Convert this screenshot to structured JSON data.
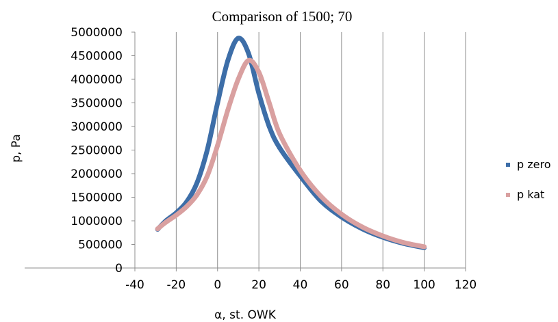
{
  "chart_data": {
    "type": "scatter",
    "title": "Comparison of 1500; 70",
    "xlabel": "α, st. OWK",
    "ylabel": "p, Pa",
    "xlim": [
      -40,
      120
    ],
    "ylim": [
      0,
      5000000
    ],
    "x_ticks": [
      "-40",
      "-20",
      "0",
      "20",
      "40",
      "60",
      "80",
      "100",
      "120"
    ],
    "y_ticks": [
      "0",
      "500000",
      "1000000",
      "1500000",
      "2000000",
      "2500000",
      "3000000",
      "3500000",
      "4000000",
      "4500000",
      "5000000"
    ],
    "grid": "vertical",
    "legend_position": "right",
    "series": [
      {
        "name": "p zero",
        "color": "#3d6ea8",
        "x": [
          -29,
          -25,
          -20,
          -15,
          -10,
          -5,
          0,
          5,
          10,
          15,
          20,
          25,
          30,
          40,
          50,
          60,
          70,
          80,
          90,
          100
        ],
        "y": [
          820000,
          1000000,
          1170000,
          1400000,
          1800000,
          2500000,
          3500000,
          4400000,
          4870000,
          4550000,
          3700000,
          3000000,
          2550000,
          1950000,
          1420000,
          1080000,
          830000,
          650000,
          520000,
          430000
        ]
      },
      {
        "name": "p kat",
        "color": "#d9a0a0",
        "x": [
          -29,
          -25,
          -20,
          -15,
          -10,
          -5,
          0,
          5,
          10,
          15,
          20,
          25,
          30,
          40,
          50,
          60,
          70,
          80,
          90,
          100
        ],
        "y": [
          830000,
          970000,
          1120000,
          1300000,
          1550000,
          1950000,
          2600000,
          3350000,
          4000000,
          4400000,
          4150000,
          3500000,
          2850000,
          2070000,
          1520000,
          1140000,
          870000,
          680000,
          540000,
          450000
        ]
      }
    ]
  }
}
